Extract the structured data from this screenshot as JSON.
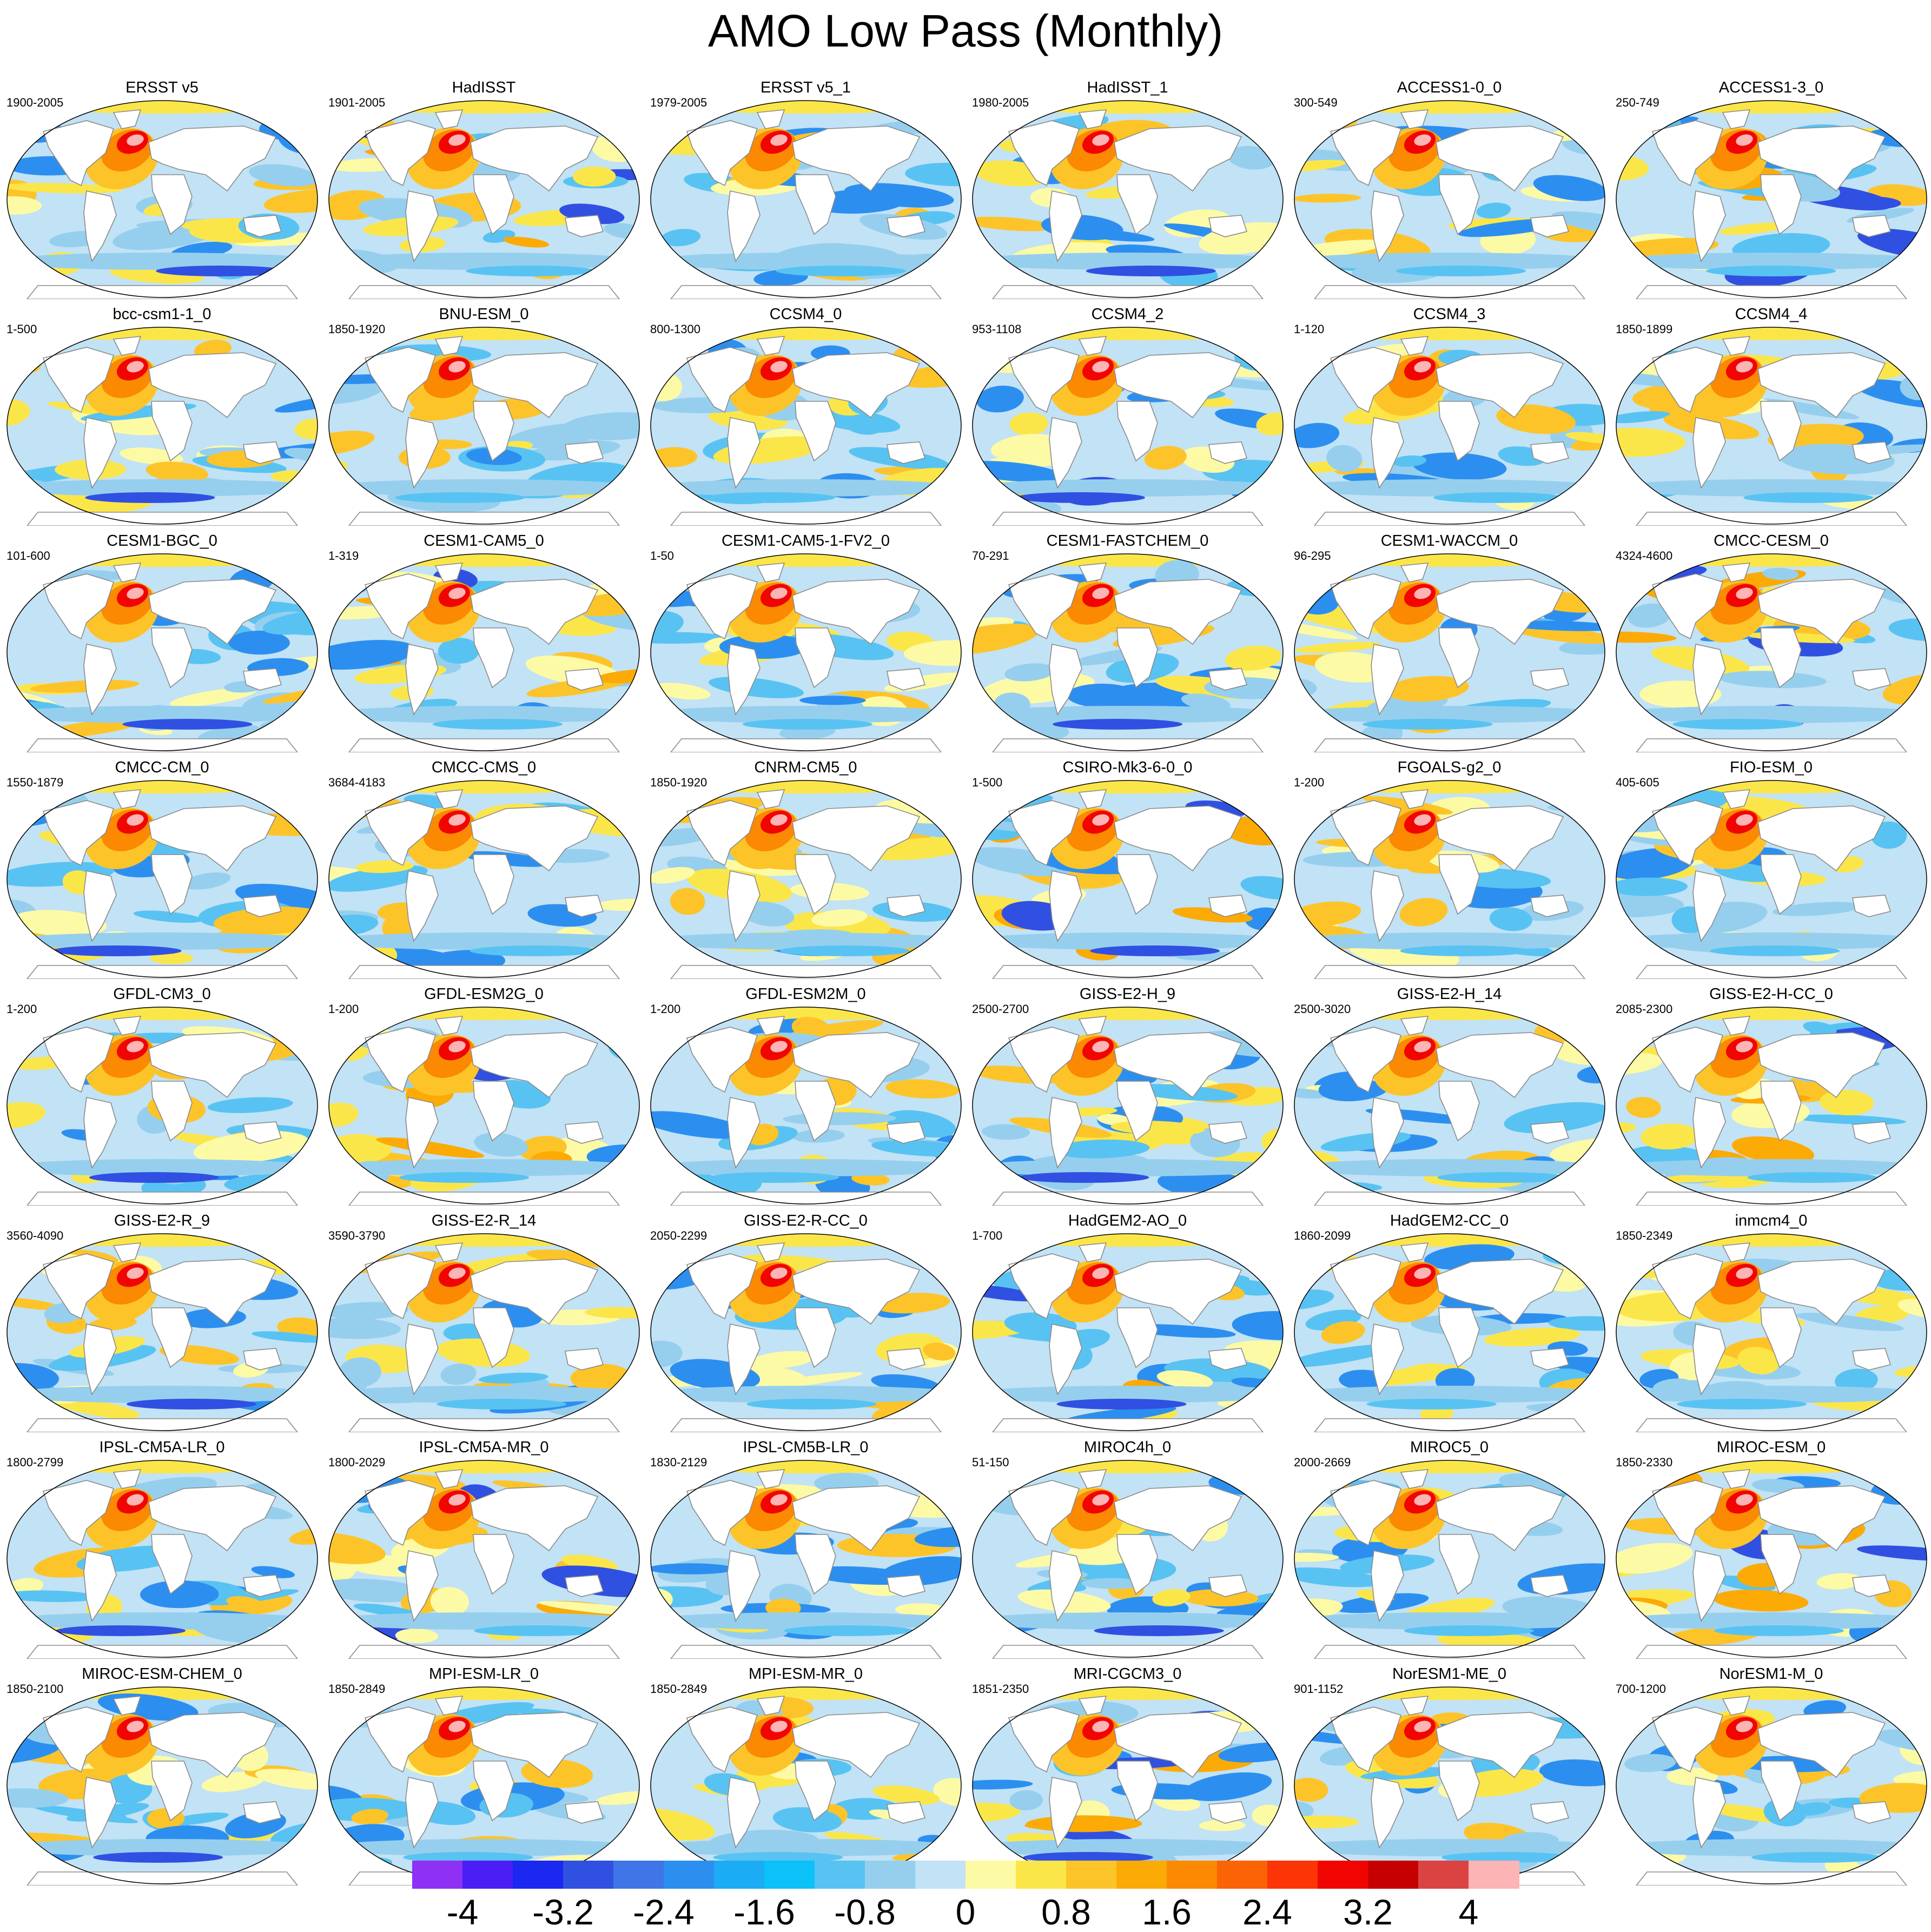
{
  "title": "AMO Low Pass (Monthly)",
  "panels": [
    {
      "name": "ERSST v5",
      "years": "1900-2005"
    },
    {
      "name": "HadISST",
      "years": "1901-2005"
    },
    {
      "name": "ERSST v5_1",
      "years": "1979-2005"
    },
    {
      "name": "HadISST_1",
      "years": "1980-2005"
    },
    {
      "name": "ACCESS1-0_0",
      "years": "300-549"
    },
    {
      "name": "ACCESS1-3_0",
      "years": "250-749"
    },
    {
      "name": "bcc-csm1-1_0",
      "years": "1-500"
    },
    {
      "name": "BNU-ESM_0",
      "years": "1850-1920"
    },
    {
      "name": "CCSM4_0",
      "years": "800-1300"
    },
    {
      "name": "CCSM4_2",
      "years": "953-1108"
    },
    {
      "name": "CCSM4_3",
      "years": "1-120"
    },
    {
      "name": "CCSM4_4",
      "years": "1850-1899"
    },
    {
      "name": "CESM1-BGC_0",
      "years": "101-600"
    },
    {
      "name": "CESM1-CAM5_0",
      "years": "1-319"
    },
    {
      "name": "CESM1-CAM5-1-FV2_0",
      "years": "1-50"
    },
    {
      "name": "CESM1-FASTCHEM_0",
      "years": "70-291"
    },
    {
      "name": "CESM1-WACCM_0",
      "years": "96-295"
    },
    {
      "name": "CMCC-CESM_0",
      "years": "4324-4600"
    },
    {
      "name": "CMCC-CM_0",
      "years": "1550-1879"
    },
    {
      "name": "CMCC-CMS_0",
      "years": "3684-4183"
    },
    {
      "name": "CNRM-CM5_0",
      "years": "1850-1920"
    },
    {
      "name": "CSIRO-Mk3-6-0_0",
      "years": "1-500"
    },
    {
      "name": "FGOALS-g2_0",
      "years": "1-200"
    },
    {
      "name": "FIO-ESM_0",
      "years": "405-605"
    },
    {
      "name": "GFDL-CM3_0",
      "years": "1-200"
    },
    {
      "name": "GFDL-ESM2G_0",
      "years": "1-200"
    },
    {
      "name": "GFDL-ESM2M_0",
      "years": "1-200"
    },
    {
      "name": "GISS-E2-H_9",
      "years": "2500-2700"
    },
    {
      "name": "GISS-E2-H_14",
      "years": "2500-3020"
    },
    {
      "name": "GISS-E2-H-CC_0",
      "years": "2085-2300"
    },
    {
      "name": "GISS-E2-R_9",
      "years": "3560-4090"
    },
    {
      "name": "GISS-E2-R_14",
      "years": "3590-3790"
    },
    {
      "name": "GISS-E2-R-CC_0",
      "years": "2050-2299"
    },
    {
      "name": "HadGEM2-AO_0",
      "years": "1-700"
    },
    {
      "name": "HadGEM2-CC_0",
      "years": "1860-2099"
    },
    {
      "name": "inmcm4_0",
      "years": "1850-2349"
    },
    {
      "name": "IPSL-CM5A-LR_0",
      "years": "1800-2799"
    },
    {
      "name": "IPSL-CM5A-MR_0",
      "years": "1800-2029"
    },
    {
      "name": "IPSL-CM5B-LR_0",
      "years": "1830-2129"
    },
    {
      "name": "MIROC4h_0",
      "years": "51-150"
    },
    {
      "name": "MIROC5_0",
      "years": "2000-2669"
    },
    {
      "name": "MIROC-ESM_0",
      "years": "1850-2330"
    },
    {
      "name": "MIROC-ESM-CHEM_0",
      "years": "1850-2100"
    },
    {
      "name": "MPI-ESM-LR_0",
      "years": "1850-2849"
    },
    {
      "name": "MPI-ESM-MR_0",
      "years": "1850-2849"
    },
    {
      "name": "MRI-CGCM3_0",
      "years": "1851-2350"
    },
    {
      "name": "NorESM1-ME_0",
      "years": "901-1152"
    },
    {
      "name": "NorESM1-M_0",
      "years": "700-1200"
    }
  ],
  "colorbar": {
    "colors": [
      "#8f30f5",
      "#4a1ef5",
      "#1a28f0",
      "#3050e2",
      "#3f75e6",
      "#2c8ff0",
      "#1cacf5",
      "#0cc0f8",
      "#58c3f2",
      "#96cfee",
      "#c2e2f5",
      "#fdfaa6",
      "#fbe64a",
      "#fdc429",
      "#fcaa05",
      "#fb8902",
      "#fb6304",
      "#fc3506",
      "#f00503",
      "#c60000",
      "#db4343",
      "#fcb4b4"
    ],
    "ticks": [
      "-4",
      "-3.2",
      "-2.4",
      "-1.6",
      "-0.8",
      "0",
      "0.8",
      "1.6",
      "2.4",
      "3.2",
      "4"
    ]
  }
}
